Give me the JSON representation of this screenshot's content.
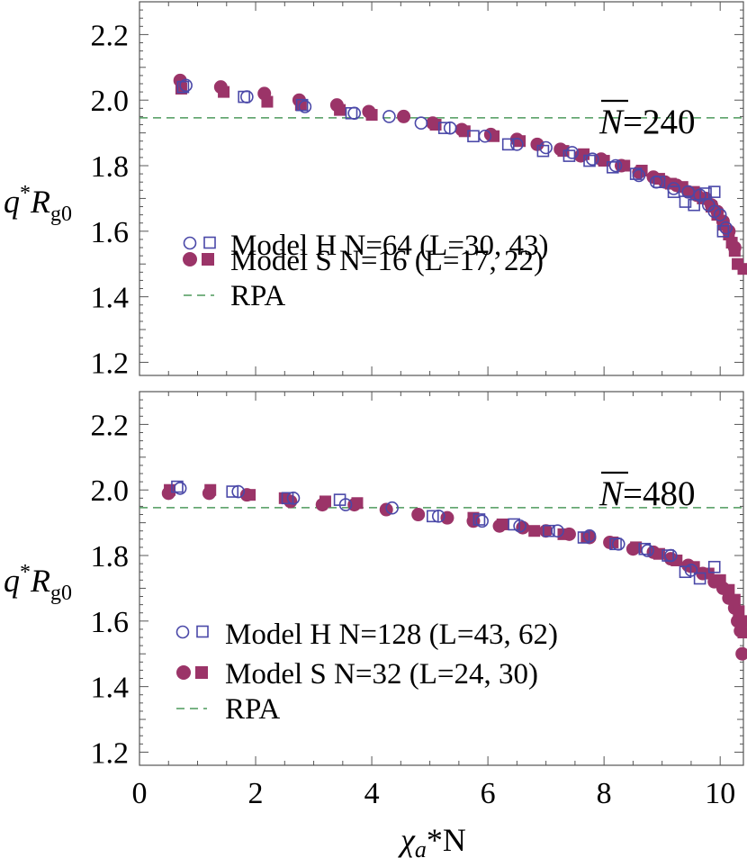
{
  "chart_data": [
    {
      "type": "scatter",
      "panel": "top",
      "nbar_symbol": "N",
      "nbar_value": "=240",
      "xlabel": {
        "chi": "χ",
        "sub": "a",
        "rest": "*N"
      },
      "ylabel": {
        "q": "q",
        "star": "*",
        "R": "R",
        "sub": "g0"
      },
      "xlim": [
        0,
        10.4
      ],
      "ylim": [
        1.16,
        2.3
      ],
      "xticks": [
        "0",
        "2",
        "4",
        "6",
        "8",
        "10"
      ],
      "yticks": [
        "1.2",
        "1.4",
        "1.6",
        "1.8",
        "2.0",
        "2.2"
      ],
      "rpa_value": 1.946,
      "legend": [
        {
          "label": "Model H  N=64 (L=30, 43)"
        },
        {
          "label": "Model S  N=16 (L=17, 22)"
        },
        {
          "label": "RPA"
        }
      ],
      "series": [
        {
          "name": "Model H L=30",
          "marker": "open-circle",
          "color": "#4a48a8",
          "x": [
            0.8,
            1.85,
            2.85,
            3.7,
            4.3,
            4.85,
            5.35,
            5.95,
            6.5,
            7.0,
            7.45,
            7.8,
            8.2,
            8.6,
            8.9,
            9.2,
            9.45,
            9.65,
            9.8,
            9.9,
            10.0,
            10.1
          ],
          "y": [
            2.045,
            2.01,
            1.98,
            1.96,
            1.95,
            1.93,
            1.915,
            1.89,
            1.865,
            1.855,
            1.84,
            1.82,
            1.8,
            1.77,
            1.75,
            1.73,
            1.72,
            1.71,
            1.68,
            1.66,
            1.65,
            1.61
          ]
        },
        {
          "name": "Model H L=43",
          "marker": "open-square",
          "color": "#4a48a8",
          "x": [
            0.75,
            1.8,
            2.8,
            3.65,
            5.25,
            5.75,
            6.35,
            6.95,
            7.4,
            7.75,
            8.15,
            8.55,
            8.95,
            9.2,
            9.4,
            9.55,
            9.75,
            9.9,
            10.05
          ],
          "y": [
            2.04,
            2.01,
            1.985,
            1.96,
            1.915,
            1.89,
            1.865,
            1.845,
            1.83,
            1.815,
            1.795,
            1.775,
            1.75,
            1.72,
            1.69,
            1.68,
            1.715,
            1.72,
            1.6
          ]
        },
        {
          "name": "Model S L=17",
          "marker": "filled-circle",
          "color": "#9b3468",
          "x": [
            0.7,
            1.4,
            2.15,
            2.75,
            3.4,
            3.95,
            4.55,
            5.05,
            5.55,
            6.05,
            6.5,
            6.85,
            7.25,
            7.6,
            7.95,
            8.3,
            8.6,
            8.85,
            9.05,
            9.25,
            9.45,
            9.6,
            9.75,
            9.85,
            9.95,
            10.05,
            10.15,
            10.25
          ],
          "y": [
            2.06,
            2.04,
            2.02,
            2.0,
            1.985,
            1.965,
            1.95,
            1.93,
            1.91,
            1.895,
            1.88,
            1.865,
            1.85,
            1.83,
            1.82,
            1.8,
            1.78,
            1.765,
            1.75,
            1.74,
            1.72,
            1.71,
            1.7,
            1.68,
            1.66,
            1.63,
            1.6,
            1.55
          ]
        },
        {
          "name": "Model S L=22",
          "marker": "filled-square",
          "color": "#9b3468",
          "x": [
            0.72,
            1.45,
            2.2,
            2.78,
            3.45,
            4.0,
            5.1,
            5.6,
            6.1,
            6.55,
            7.3,
            7.65,
            8.0,
            8.35,
            8.65,
            8.95,
            9.15,
            9.35,
            9.55,
            9.7,
            9.85,
            9.95,
            10.05,
            10.15,
            10.2,
            10.25,
            10.3,
            10.4
          ],
          "y": [
            2.035,
            2.025,
            1.995,
            1.985,
            1.97,
            1.955,
            1.925,
            1.905,
            1.89,
            1.875,
            1.845,
            1.835,
            1.815,
            1.8,
            1.785,
            1.76,
            1.745,
            1.735,
            1.72,
            1.7,
            1.675,
            1.65,
            1.62,
            1.59,
            1.565,
            1.54,
            1.5,
            1.485
          ]
        }
      ]
    },
    {
      "type": "scatter",
      "panel": "bottom",
      "nbar_symbol": "N",
      "nbar_value": "=480",
      "xlabel": {
        "chi": "χ",
        "sub": "a",
        "rest": "*N"
      },
      "ylabel": {
        "q": "q",
        "star": "*",
        "R": "R",
        "sub": "g0"
      },
      "xlim": [
        0,
        10.4
      ],
      "ylim": [
        1.16,
        2.3
      ],
      "xticks": [
        "0",
        "2",
        "4",
        "6",
        "8",
        "10"
      ],
      "yticks": [
        "1.2",
        "1.4",
        "1.6",
        "1.8",
        "2.0",
        "2.2"
      ],
      "rpa_value": 1.946,
      "legend": [
        {
          "label": "Model H  N=128 (L=43, 62)"
        },
        {
          "label": "Model S  N=32 (L=24, 30)"
        },
        {
          "label": "RPA"
        }
      ],
      "series": [
        {
          "name": "Model H L=43",
          "marker": "open-circle",
          "color": "#4a48a8",
          "x": [
            0.7,
            1.7,
            2.65,
            3.55,
            4.35,
            5.15,
            5.9,
            6.55,
            7.2,
            7.75,
            8.25,
            8.75,
            9.15,
            9.5
          ],
          "y": [
            2.005,
            1.995,
            1.975,
            1.955,
            1.945,
            1.92,
            1.905,
            1.89,
            1.875,
            1.86,
            1.835,
            1.815,
            1.8,
            1.755
          ]
        },
        {
          "name": "Model H L=62",
          "marker": "open-square",
          "color": "#4a48a8",
          "x": [
            0.65,
            1.6,
            2.55,
            3.45,
            5.05,
            5.85,
            6.45,
            7.05,
            7.65,
            8.2,
            8.7,
            9.1,
            9.4,
            9.65,
            9.9
          ],
          "y": [
            2.01,
            1.995,
            1.975,
            1.97,
            1.92,
            1.91,
            1.895,
            1.875,
            1.855,
            1.835,
            1.82,
            1.8,
            1.75,
            1.73,
            1.765
          ]
        },
        {
          "name": "Model S L=24",
          "marker": "filled-circle",
          "color": "#9b3468",
          "x": [
            0.5,
            1.2,
            1.85,
            2.6,
            3.15,
            3.7,
            4.25,
            4.8,
            5.3,
            5.75,
            6.2,
            6.6,
            7.0,
            7.4,
            7.75,
            8.1,
            8.5,
            8.85,
            9.15,
            9.45,
            9.7,
            9.9,
            10.05,
            10.15,
            10.25,
            10.3,
            10.35,
            10.38
          ],
          "y": [
            1.99,
            1.99,
            1.985,
            1.965,
            1.955,
            1.955,
            1.94,
            1.925,
            1.915,
            1.905,
            1.89,
            1.885,
            1.875,
            1.865,
            1.855,
            1.84,
            1.82,
            1.81,
            1.79,
            1.77,
            1.745,
            1.72,
            1.7,
            1.67,
            1.64,
            1.6,
            1.57,
            1.5
          ]
        },
        {
          "name": "Model S L=30",
          "marker": "filled-square",
          "color": "#9b3468",
          "x": [
            0.52,
            1.22,
            1.9,
            2.5,
            3.2,
            3.75,
            5.75,
            6.25,
            6.8,
            7.3,
            7.7,
            8.15,
            8.55,
            8.95,
            9.25,
            9.55,
            9.8,
            10.0,
            10.15,
            10.25,
            10.32,
            10.38,
            10.4
          ],
          "y": [
            2.0,
            2.0,
            1.985,
            1.975,
            1.965,
            1.96,
            1.915,
            1.895,
            1.875,
            1.865,
            1.855,
            1.84,
            1.825,
            1.805,
            1.785,
            1.765,
            1.745,
            1.725,
            1.695,
            1.665,
            1.63,
            1.6,
            1.565
          ]
        }
      ]
    }
  ]
}
